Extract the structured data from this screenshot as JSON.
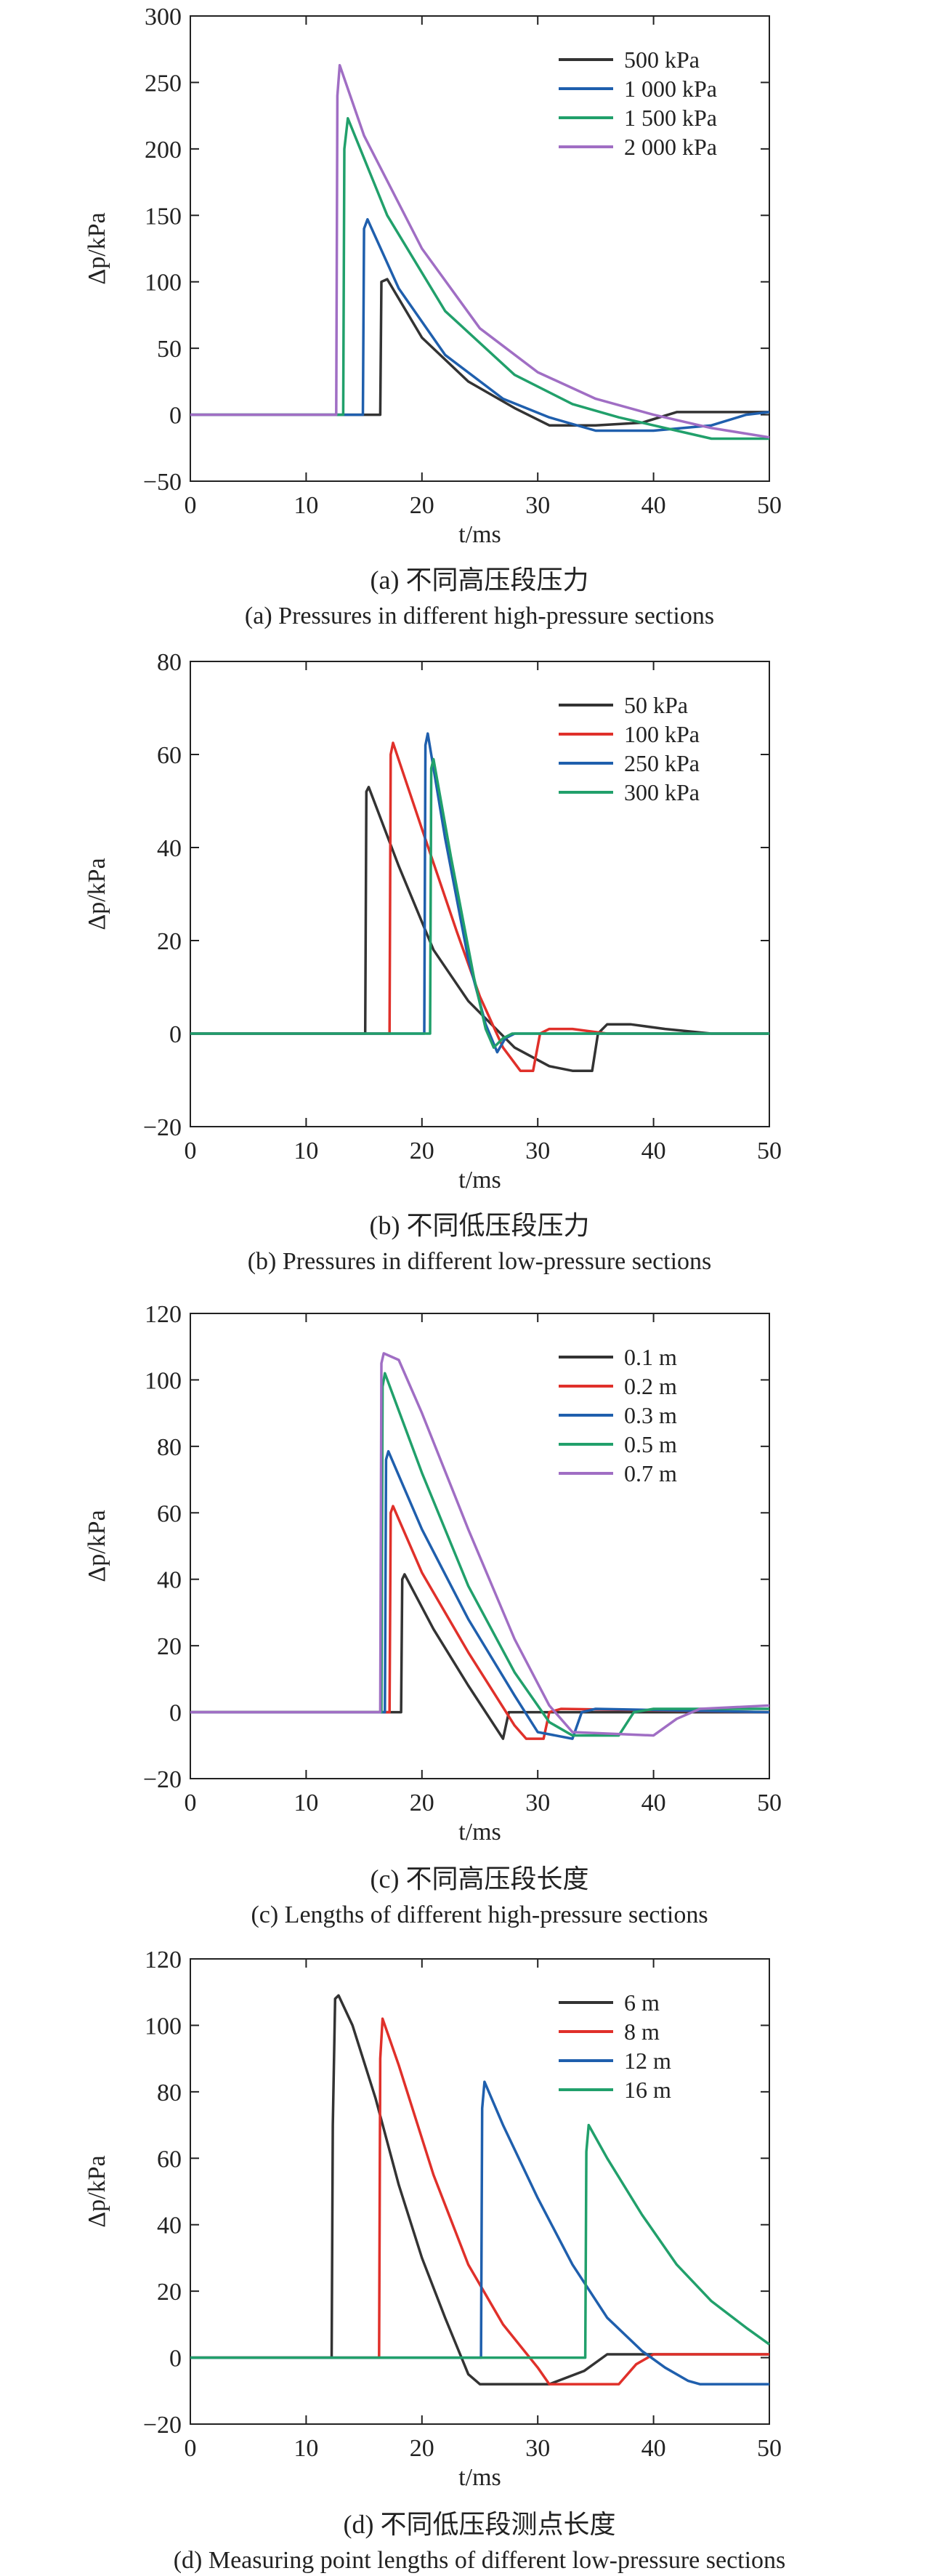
{
  "figures": [
    {
      "title": "",
      "caption_cn": "(a) 不同高压段压力",
      "caption_en": "(a) Pressures in different high-pressure sections"
    },
    {
      "title": "",
      "caption_cn": "(b) 不同低压段压力",
      "caption_en": "(b) Pressures in different low-pressure sections"
    },
    {
      "title": "",
      "caption_cn": "(c) 不同高压段长度",
      "caption_en": "(c) Lengths of different high-pressure sections"
    },
    {
      "title": "",
      "caption_cn": "(d) 不同低压段测点长度",
      "caption_en": "(d) Measuring point lengths of different low-pressure sections"
    }
  ],
  "colors": {
    "black": "#333333",
    "red": "#e0302a",
    "blue": "#1f5fad",
    "green": "#21a06b",
    "purple": "#a06ec4"
  },
  "chart_data": [
    {
      "type": "line",
      "xlabel": "t/ms",
      "ylabel": "Δp/kPa",
      "xlim": [
        0,
        50
      ],
      "ylim": [
        -50,
        300
      ],
      "xticks": [
        0,
        10,
        20,
        30,
        40,
        50
      ],
      "yticks": [
        -50,
        0,
        50,
        100,
        150,
        200,
        250,
        300
      ],
      "legend": "top-right",
      "grid": false,
      "series": [
        {
          "name": "500 kPa",
          "color": "#333333",
          "points": [
            [
              0,
              0
            ],
            [
              16.4,
              0
            ],
            [
              16.5,
              100
            ],
            [
              17,
              102
            ],
            [
              20,
              58
            ],
            [
              24,
              25
            ],
            [
              28,
              5
            ],
            [
              31,
              -8
            ],
            [
              35,
              -8
            ],
            [
              39,
              -6
            ],
            [
              42,
              2
            ],
            [
              50,
              2
            ]
          ]
        },
        {
          "name": "1 000 kPa",
          "color": "#1f5fad",
          "points": [
            [
              0,
              0
            ],
            [
              14.9,
              0
            ],
            [
              15,
              140
            ],
            [
              15.3,
              147
            ],
            [
              18,
              95
            ],
            [
              22,
              45
            ],
            [
              27,
              12
            ],
            [
              31,
              -2
            ],
            [
              35,
              -12
            ],
            [
              40,
              -12
            ],
            [
              45,
              -8
            ],
            [
              48,
              0
            ],
            [
              50,
              2
            ]
          ]
        },
        {
          "name": "1 500 kPa",
          "color": "#21a06b",
          "points": [
            [
              0,
              0
            ],
            [
              13.2,
              0
            ],
            [
              13.3,
              200
            ],
            [
              13.6,
              223
            ],
            [
              17,
              150
            ],
            [
              22,
              78
            ],
            [
              28,
              30
            ],
            [
              33,
              8
            ],
            [
              37,
              -2
            ],
            [
              42,
              -12
            ],
            [
              45,
              -18
            ],
            [
              50,
              -18
            ]
          ]
        },
        {
          "name": "2 000 kPa",
          "color": "#a06ec4",
          "points": [
            [
              0,
              0
            ],
            [
              12.6,
              0
            ],
            [
              12.7,
              240
            ],
            [
              12.9,
              263
            ],
            [
              15,
              210
            ],
            [
              20,
              125
            ],
            [
              25,
              65
            ],
            [
              30,
              32
            ],
            [
              35,
              12
            ],
            [
              40,
              0
            ],
            [
              45,
              -10
            ],
            [
              50,
              -17
            ]
          ]
        }
      ]
    },
    {
      "type": "line",
      "xlabel": "t/ms",
      "ylabel": "Δp/kPa",
      "xlim": [
        0,
        50
      ],
      "ylim": [
        -20,
        80
      ],
      "xticks": [
        0,
        10,
        20,
        30,
        40,
        50
      ],
      "yticks": [
        -20,
        0,
        20,
        40,
        60,
        80
      ],
      "legend": "top-right",
      "grid": false,
      "series": [
        {
          "name": "50 kPa",
          "color": "#333333",
          "points": [
            [
              0,
              0
            ],
            [
              15.1,
              0
            ],
            [
              15.2,
              52
            ],
            [
              15.4,
              53
            ],
            [
              18,
              36
            ],
            [
              21,
              18
            ],
            [
              24,
              7
            ],
            [
              26,
              2
            ],
            [
              28,
              -3
            ],
            [
              31,
              -7
            ],
            [
              33,
              -8
            ],
            [
              34.7,
              -8
            ],
            [
              35.2,
              0
            ],
            [
              36,
              2
            ],
            [
              38,
              2
            ],
            [
              41,
              1
            ],
            [
              45,
              0
            ],
            [
              50,
              0
            ]
          ]
        },
        {
          "name": "100 kPa",
          "color": "#e0302a",
          "points": [
            [
              0,
              0
            ],
            [
              17.2,
              0
            ],
            [
              17.3,
              60
            ],
            [
              17.5,
              62.5
            ],
            [
              20,
              44
            ],
            [
              23,
              22
            ],
            [
              25,
              8
            ],
            [
              27,
              -3
            ],
            [
              28.5,
              -8
            ],
            [
              29.6,
              -8
            ],
            [
              30.2,
              0
            ],
            [
              31,
              1
            ],
            [
              33,
              1
            ],
            [
              36,
              0
            ],
            [
              50,
              0
            ]
          ]
        },
        {
          "name": "250 kPa",
          "color": "#1f5fad",
          "points": [
            [
              0,
              0
            ],
            [
              20.2,
              0
            ],
            [
              20.3,
              62
            ],
            [
              20.5,
              64.5
            ],
            [
              22,
              42
            ],
            [
              24,
              16
            ],
            [
              25.5,
              2
            ],
            [
              26.5,
              -4
            ],
            [
              27.2,
              -1
            ],
            [
              28,
              0
            ],
            [
              50,
              0
            ]
          ]
        },
        {
          "name": "300 kPa",
          "color": "#21a06b",
          "points": [
            [
              0,
              0
            ],
            [
              20.7,
              0
            ],
            [
              20.8,
              57
            ],
            [
              21,
              59
            ],
            [
              22.5,
              38
            ],
            [
              24.5,
              12
            ],
            [
              25.5,
              1
            ],
            [
              26.2,
              -3
            ],
            [
              27,
              -1
            ],
            [
              27.8,
              0
            ],
            [
              50,
              0
            ]
          ]
        }
      ]
    },
    {
      "type": "line",
      "xlabel": "t/ms",
      "ylabel": "Δp/kPa",
      "xlim": [
        0,
        50
      ],
      "ylim": [
        -20,
        120
      ],
      "xticks": [
        0,
        10,
        20,
        30,
        40,
        50
      ],
      "yticks": [
        -20,
        0,
        20,
        40,
        60,
        80,
        100,
        120
      ],
      "legend": "top-right",
      "grid": false,
      "series": [
        {
          "name": "0.1 m",
          "color": "#333333",
          "points": [
            [
              0,
              0
            ],
            [
              18.2,
              0
            ],
            [
              18.3,
              40
            ],
            [
              18.5,
              41.5
            ],
            [
              21,
              25
            ],
            [
              24,
              8
            ],
            [
              27,
              -8
            ],
            [
              27.5,
              0
            ],
            [
              29,
              0
            ],
            [
              50,
              0
            ]
          ]
        },
        {
          "name": "0.2 m",
          "color": "#e0302a",
          "points": [
            [
              0,
              0
            ],
            [
              17.2,
              0
            ],
            [
              17.3,
              60
            ],
            [
              17.5,
              62
            ],
            [
              20,
              42
            ],
            [
              24,
              18
            ],
            [
              28,
              -4
            ],
            [
              29,
              -8
            ],
            [
              30.5,
              -8
            ],
            [
              31,
              0
            ],
            [
              32,
              1
            ],
            [
              50,
              0
            ]
          ]
        },
        {
          "name": "0.3 m",
          "color": "#1f5fad",
          "points": [
            [
              0,
              0
            ],
            [
              16.8,
              0
            ],
            [
              16.9,
              76
            ],
            [
              17.1,
              78.5
            ],
            [
              20,
              55
            ],
            [
              24,
              28
            ],
            [
              28,
              5
            ],
            [
              30,
              -6
            ],
            [
              33,
              -8
            ],
            [
              33.8,
              0
            ],
            [
              35,
              1
            ],
            [
              50,
              0
            ]
          ]
        },
        {
          "name": "0.5 m",
          "color": "#21a06b",
          "points": [
            [
              0,
              0
            ],
            [
              16.5,
              0
            ],
            [
              16.6,
              98
            ],
            [
              16.8,
              102
            ],
            [
              20,
              72
            ],
            [
              24,
              38
            ],
            [
              28,
              12
            ],
            [
              31,
              -3
            ],
            [
              33,
              -7
            ],
            [
              37,
              -7
            ],
            [
              38.3,
              0
            ],
            [
              40,
              1
            ],
            [
              50,
              1
            ]
          ]
        },
        {
          "name": "0.7 m",
          "color": "#a06ec4",
          "points": [
            [
              0,
              0
            ],
            [
              16.4,
              0
            ],
            [
              16.5,
              105
            ],
            [
              16.7,
              108
            ],
            [
              18,
              106
            ],
            [
              20,
              90
            ],
            [
              24,
              55
            ],
            [
              28,
              22
            ],
            [
              31,
              2
            ],
            [
              33,
              -6
            ],
            [
              40,
              -7
            ],
            [
              42,
              -2
            ],
            [
              44,
              1
            ],
            [
              50,
              2
            ]
          ]
        }
      ]
    },
    {
      "type": "line",
      "xlabel": "t/ms",
      "ylabel": "Δp/kPa",
      "xlim": [
        0,
        50
      ],
      "ylim": [
        -20,
        120
      ],
      "xticks": [
        0,
        10,
        20,
        30,
        40,
        50
      ],
      "yticks": [
        -20,
        0,
        20,
        40,
        60,
        80,
        100,
        120
      ],
      "legend": "top-right",
      "grid": false,
      "series": [
        {
          "name": "6 m",
          "color": "#333333",
          "points": [
            [
              0,
              0
            ],
            [
              12.2,
              0
            ],
            [
              12.3,
              70
            ],
            [
              12.5,
              108
            ],
            [
              12.8,
              109
            ],
            [
              14,
              100
            ],
            [
              16,
              78
            ],
            [
              18,
              52
            ],
            [
              20,
              30
            ],
            [
              22,
              12
            ],
            [
              24,
              -5
            ],
            [
              25,
              -8
            ],
            [
              31,
              -8
            ],
            [
              34,
              -4
            ],
            [
              36,
              1
            ],
            [
              38,
              1
            ],
            [
              50,
              1
            ]
          ]
        },
        {
          "name": "8 m",
          "color": "#e0302a",
          "points": [
            [
              0,
              0
            ],
            [
              16.3,
              0
            ],
            [
              16.4,
              90
            ],
            [
              16.6,
              102
            ],
            [
              18,
              88
            ],
            [
              21,
              55
            ],
            [
              24,
              28
            ],
            [
              27,
              10
            ],
            [
              30,
              -3
            ],
            [
              31,
              -8
            ],
            [
              37,
              -8
            ],
            [
              38.5,
              -2
            ],
            [
              40,
              1
            ],
            [
              50,
              1
            ]
          ]
        },
        {
          "name": "12 m",
          "color": "#1f5fad",
          "points": [
            [
              0,
              0
            ],
            [
              25.1,
              0
            ],
            [
              25.2,
              75
            ],
            [
              25.4,
              83
            ],
            [
              27,
              70
            ],
            [
              30,
              48
            ],
            [
              33,
              28
            ],
            [
              36,
              12
            ],
            [
              39,
              2
            ],
            [
              41,
              -3
            ],
            [
              43,
              -7
            ],
            [
              44,
              -8
            ],
            [
              50,
              -8
            ]
          ]
        },
        {
          "name": "16 m",
          "color": "#21a06b",
          "points": [
            [
              0,
              0
            ],
            [
              34.1,
              0
            ],
            [
              34.2,
              62
            ],
            [
              34.4,
              70
            ],
            [
              36,
              60
            ],
            [
              39,
              43
            ],
            [
              42,
              28
            ],
            [
              45,
              17
            ],
            [
              48,
              9
            ],
            [
              50,
              4
            ]
          ]
        }
      ]
    }
  ]
}
